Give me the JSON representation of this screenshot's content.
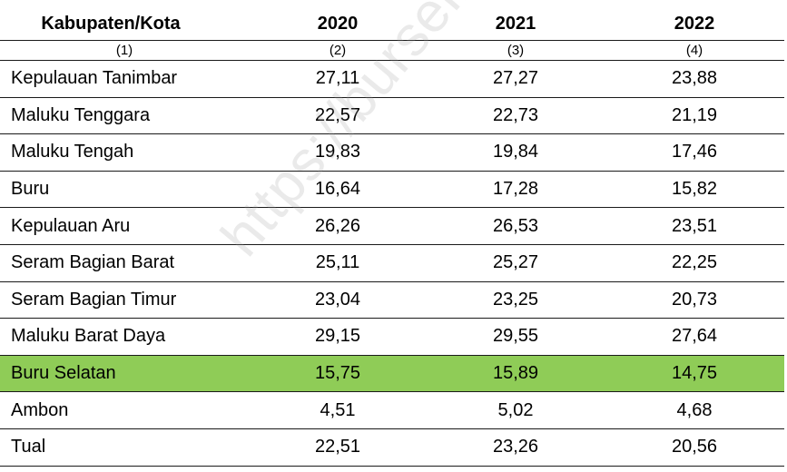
{
  "header": {
    "col_region": "Kabupaten/Kota",
    "col_2020": "2020",
    "col_2021": "2021",
    "col_2022": "2022"
  },
  "numbering": [
    "(1)",
    "(2)",
    "(3)",
    "(4)"
  ],
  "rows": [
    {
      "name": "Kepulauan Tanimbar",
      "v2020": "27,11",
      "v2021": "27,27",
      "v2022": "23,88"
    },
    {
      "name": "Maluku Tenggara",
      "v2020": "22,57",
      "v2021": "22,73",
      "v2022": "21,19"
    },
    {
      "name": "Maluku Tengah",
      "v2020": "19,83",
      "v2021": "19,84",
      "v2022": "17,46"
    },
    {
      "name": "Buru",
      "v2020": "16,64",
      "v2021": "17,28",
      "v2022": "15,82"
    },
    {
      "name": "Kepulauan Aru",
      "v2020": "26,26",
      "v2021": "26,53",
      "v2022": "23,51"
    },
    {
      "name": "Seram Bagian Barat",
      "v2020": "25,11",
      "v2021": "25,27",
      "v2022": "22,25"
    },
    {
      "name": "Seram Bagian Timur",
      "v2020": "23,04",
      "v2021": "23,25",
      "v2022": "20,73"
    },
    {
      "name": "Maluku Barat Daya",
      "v2020": "29,15",
      "v2021": "29,55",
      "v2022": "27,64"
    },
    {
      "name": "Buru Selatan",
      "v2020": "15,75",
      "v2021": "15,89",
      "v2022": "14,75"
    },
    {
      "name": "Ambon",
      "v2020": "4,51",
      "v2021": "5,02",
      "v2022": "4,68"
    },
    {
      "name": "Tual",
      "v2020": "22,51",
      "v2021": "23,26",
      "v2022": "20,56"
    }
  ],
  "highlight_color": "#8fcc57",
  "watermark": "https://burselkab.bps.go.id"
}
